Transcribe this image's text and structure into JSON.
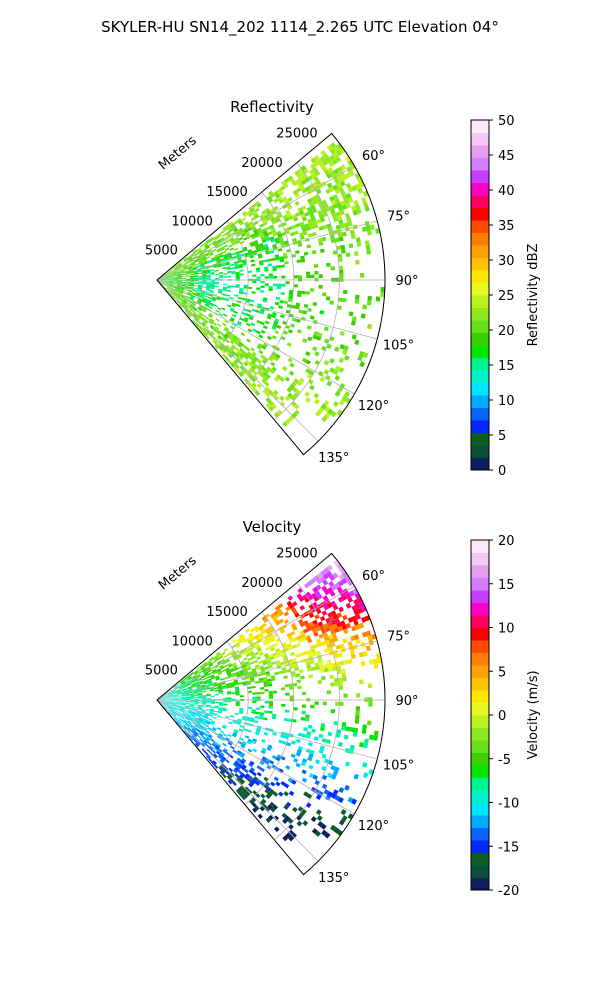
{
  "suptitle": "SKYLER-HU  SN14_202  1114_2.265 UTC Elevation 04°",
  "colors": {
    "grid": "#b0b0b0",
    "colormap": [
      "#0b1f5e",
      "#0b4f3a",
      "#0f5b24",
      "#0028ff",
      "#0a62ff",
      "#00aaff",
      "#00e5ff",
      "#00f2c8",
      "#00f290",
      "#00e600",
      "#3ccf00",
      "#66e01a",
      "#8de81f",
      "#b8f020",
      "#e8f726",
      "#ffe600",
      "#ffc400",
      "#ffa100",
      "#ff7d00",
      "#ff4a00",
      "#ff0000",
      "#ff0060",
      "#ff00c8",
      "#c83cff",
      "#d27dff",
      "#e89ef0",
      "#f4c8f4",
      "#fbe8fb"
    ]
  },
  "chart_data": [
    {
      "type": "polar_sector",
      "title": "Reflectivity",
      "range_axis_label": "Meters",
      "range_ticks": [
        5000,
        10000,
        15000,
        20000,
        25000
      ],
      "range_tick_labels": [
        "5000",
        "10000",
        "15000",
        "20000",
        "25000"
      ],
      "range_max": 25000,
      "angle_range_deg": [
        50,
        140
      ],
      "angle_ticks": [
        60,
        75,
        90,
        105,
        120,
        135
      ],
      "angle_tick_labels": [
        "60°",
        "75°",
        "90°",
        "105°",
        "120°",
        "135°"
      ],
      "grid": true,
      "field": "reflectivity",
      "colorbar": {
        "label": "Reflectivity dBZ",
        "min": 0,
        "max": 50,
        "ticks": [
          0,
          5,
          10,
          15,
          20,
          25,
          30,
          35,
          40,
          45,
          50
        ],
        "tick_labels": [
          "0",
          "5",
          "10",
          "15",
          "20",
          "25",
          "30",
          "35",
          "40",
          "45",
          "50"
        ]
      }
    },
    {
      "type": "polar_sector",
      "title": "Velocity",
      "range_axis_label": "Meters",
      "range_ticks": [
        5000,
        10000,
        15000,
        20000,
        25000
      ],
      "range_tick_labels": [
        "5000",
        "10000",
        "15000",
        "20000",
        "25000"
      ],
      "range_max": 25000,
      "angle_range_deg": [
        50,
        140
      ],
      "angle_ticks": [
        60,
        75,
        90,
        105,
        120,
        135
      ],
      "angle_tick_labels": [
        "60°",
        "75°",
        "90°",
        "105°",
        "120°",
        "135°"
      ],
      "grid": true,
      "field": "velocity",
      "colorbar": {
        "label": "Velocity (m/s)",
        "min": -20,
        "max": 20,
        "ticks": [
          -20,
          -15,
          -10,
          -5,
          0,
          5,
          10,
          15,
          20
        ],
        "tick_labels": [
          "-20",
          "-15",
          "-10",
          "-5",
          "0",
          "5",
          "10",
          "15",
          "20"
        ]
      }
    }
  ]
}
